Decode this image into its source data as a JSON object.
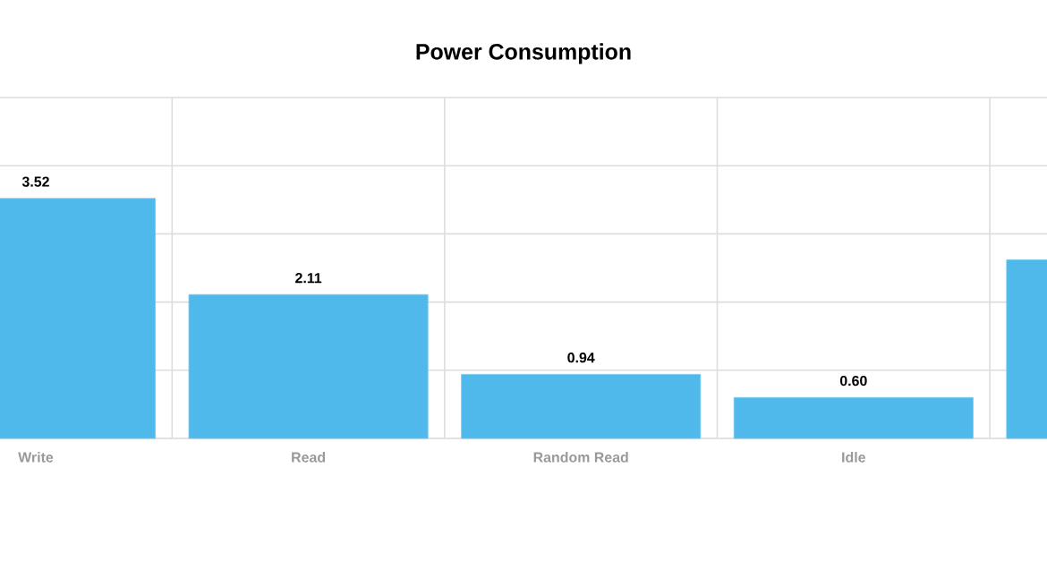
{
  "chart_data": {
    "type": "bar",
    "title": "Power Consumption",
    "categories": [
      "Write",
      "Read",
      "Random Read",
      "Idle",
      null
    ],
    "values": [
      3.52,
      2.11,
      0.94,
      0.6,
      2.62
    ],
    "value_labels": [
      "3.52",
      "2.11",
      "0.94",
      "0.60",
      null
    ],
    "color": "#50b9eb",
    "ylim": [
      0,
      5
    ],
    "grid": true,
    "tick_labels": "x"
  }
}
